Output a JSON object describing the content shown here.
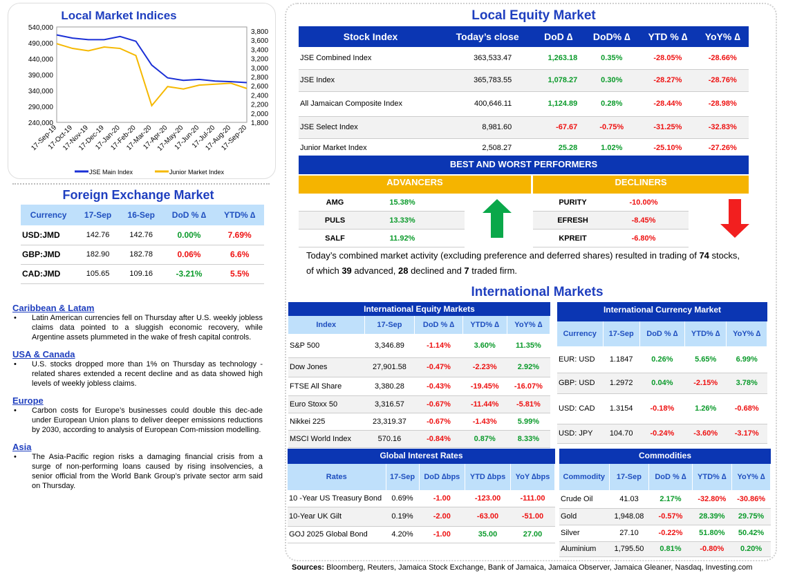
{
  "chart": {
    "title": "Local Market Indices",
    "left_ticks": [
      "540,000",
      "490,000",
      "440,000",
      "390,000",
      "340,000",
      "290,000",
      "240,000"
    ],
    "right_ticks": [
      "3,800",
      "3,600",
      "3,400",
      "3,200",
      "3,000",
      "2,800",
      "2,600",
      "2,400",
      "2,200",
      "2,000",
      "1,800"
    ],
    "x_ticks": [
      "17-Sep-19",
      "17-Oct-19",
      "17-Nov-19",
      "17-Dec-19",
      "17-Jan-20",
      "17-Feb-20",
      "17-Mar-20",
      "17-Apr-20",
      "17-May-20",
      "17-Jun-20",
      "17-Jul-20",
      "17-Aug-20",
      "17-Sep-20"
    ],
    "legend_main": "JSE Main Index",
    "legend_junior": "Junior Market Index",
    "color_main": "#1a2fd6",
    "color_junior": "#f5b800"
  },
  "chart_data": {
    "type": "line",
    "title": "Local Market Indices",
    "x": [
      "17-Sep-19",
      "17-Oct-19",
      "17-Nov-19",
      "17-Dec-19",
      "17-Jan-20",
      "17-Feb-20",
      "17-Mar-20",
      "17-Apr-20",
      "17-May-20",
      "17-Jun-20",
      "17-Jul-20",
      "17-Aug-20",
      "17-Sep-20"
    ],
    "series": [
      {
        "name": "JSE Main Index",
        "axis": "left",
        "values": [
          515000,
          505000,
          500000,
          500000,
          510000,
          495000,
          420000,
          380000,
          372000,
          375000,
          370000,
          368000,
          365000
        ]
      },
      {
        "name": "Junior Market Index",
        "axis": "right",
        "values": [
          3450,
          3350,
          3300,
          3380,
          3350,
          3200,
          2150,
          2550,
          2500,
          2580,
          2600,
          2620,
          2510
        ]
      }
    ],
    "ylim_left": [
      240000,
      540000
    ],
    "ylim_right": [
      1800,
      3800
    ]
  },
  "fx": {
    "title": "Foreign Exchange Market",
    "headers": [
      "Currency",
      "17-Sep",
      "16-Sep",
      "DoD % ∆",
      "YTD% ∆"
    ],
    "rows": [
      {
        "c": "USD:JMD",
        "a": "142.76",
        "b": "142.76",
        "d": "0.00%",
        "y": "7.69%",
        "ds": "pos",
        "ys": "neg"
      },
      {
        "c": "GBP:JMD",
        "a": "182.90",
        "b": "182.78",
        "d": "0.06%",
        "y": "6.6%",
        "ds": "neg",
        "ys": "neg"
      },
      {
        "c": "CAD:JMD",
        "a": "105.65",
        "b": "109.16",
        "d": "-3.21%",
        "y": "5.5%",
        "ds": "pos",
        "ys": "neg"
      }
    ]
  },
  "news": [
    {
      "head": "Caribbean & Latam",
      "text": "Latin American currencies fell on Thursday after U.S. weekly jobless claims data pointed to a sluggish economic recovery, while Argentine assets plummeted in the wake of fresh capital controls."
    },
    {
      "head": "USA & Canada",
      "text": "U.S. stocks dropped more than 1% on Thursday as technology -related shares extended a recent decline and as data showed high levels of weekly jobless claims."
    },
    {
      "head": "Europe",
      "text": "Carbon costs for Europe’s businesses could double this dec-ade under European Union plans to deliver deeper emissions reductions by 2030, according to analysis of European Com-mission modelling."
    },
    {
      "head": "Asia",
      "text": "The Asia-Pacific region risks a damaging financial crisis from a surge of non-performing loans caused by rising insolvencies, a senior official from the World Bank Group’s private sector arm said on Thursday."
    }
  ],
  "equity": {
    "title": "Local Equity Market",
    "headers": [
      "Stock Index",
      "Today’s close",
      "DoD  ∆",
      "DoD% ∆",
      "YTD % ∆",
      "YoY% ∆"
    ],
    "rows": [
      {
        "n": "JSE Combined Index",
        "c": "363,533.47",
        "d": "1,263.18",
        "dp": "0.35%",
        "y": "-28.05%",
        "yy": "-28.66%",
        "s": "pos"
      },
      {
        "n": "JSE Index",
        "c": "365,783.55",
        "d": "1,078.27",
        "dp": "0.30%",
        "y": "-28.27%",
        "yy": "-28.76%",
        "s": "pos"
      },
      {
        "n": "All Jamaican Composite Index",
        "c": "400,646.11",
        "d": "1,124.89",
        "dp": "0.28%",
        "y": "-28.44%",
        "yy": "-28.98%",
        "s": "pos"
      },
      {
        "n": "JSE Select Index",
        "c": "8,981.60",
        "d": "-67.67",
        "dp": "-0.75%",
        "y": "-31.25%",
        "yy": "-32.83%",
        "s": "neg"
      },
      {
        "n": "Junior Market Index",
        "c": "2,508.27",
        "d": "25.28",
        "dp": "1.02%",
        "y": "-25.10%",
        "yy": "-27.26%",
        "s": "pos"
      }
    ]
  },
  "performers": {
    "title": "BEST AND WORST PERFORMERS",
    "adv_label": "ADVANCERS",
    "dec_label": "DECLINERS",
    "advancers": [
      {
        "s": "AMG",
        "v": "15.38%"
      },
      {
        "s": "PULS",
        "v": "13.33%"
      },
      {
        "s": "SALF",
        "v": "11.92%"
      }
    ],
    "decliners": [
      {
        "s": "PURITY",
        "v": "-10.00%"
      },
      {
        "s": "EFRESH",
        "v": "-8.45%"
      },
      {
        "s": "KPREIT",
        "v": "-6.80%"
      }
    ]
  },
  "summary": {
    "p1": "Today’s combined market activity (excluding preference and deferred shares) resulted in trading of ",
    "n1": "74",
    "p2": " stocks, of which ",
    "n2": "39",
    "p3": " advanced, ",
    "n3": "28",
    "p4": " declined and ",
    "n4": "7",
    "p5": " traded firm."
  },
  "intl": {
    "title": "International Markets",
    "eq_title": "International Equity Markets",
    "eq_headers": [
      "Index",
      "17-Sep",
      "DoD % ∆",
      "YTD% ∆",
      "YoY% ∆"
    ],
    "eq_rows": [
      {
        "n": "S&P 500",
        "v": "3,346.89",
        "d": "-1.14%",
        "y": "3.60%",
        "yy": "11.35%",
        "ds": "neg",
        "ys": "pos",
        "yys": "pos"
      },
      {
        "n": "Dow Jones",
        "v": "27,901.58",
        "d": "-0.47%",
        "y": "-2.23%",
        "yy": "2.92%",
        "ds": "neg",
        "ys": "neg",
        "yys": "pos"
      },
      {
        "n": "FTSE All Share",
        "v": "3,380.28",
        "d": "-0.43%",
        "y": "-19.45%",
        "yy": "-16.07%",
        "ds": "neg",
        "ys": "neg",
        "yys": "neg"
      },
      {
        "n": "Euro Stoxx 50",
        "v": "3,316.57",
        "d": "-0.67%",
        "y": "-11.44%",
        "yy": "-5.81%",
        "ds": "neg",
        "ys": "neg",
        "yys": "neg"
      },
      {
        "n": "Nikkei 225",
        "v": "23,319.37",
        "d": "-0.67%",
        "y": "-1.43%",
        "yy": "5.99%",
        "ds": "neg",
        "ys": "neg",
        "yys": "pos"
      },
      {
        "n": "MSCI World Index",
        "v": "570.16",
        "d": "-0.84%",
        "y": "0.87%",
        "yy": "8.33%",
        "ds": "neg",
        "ys": "pos",
        "yys": "pos"
      }
    ],
    "cur_title": "International Currency Market",
    "cur_headers": [
      "Currency",
      "17-Sep",
      "DoD % ∆",
      "YTD% ∆",
      "YoY% ∆"
    ],
    "cur_rows": [
      {
        "n": "EUR: USD",
        "v": "1.1847",
        "d": "0.26%",
        "y": "5.65%",
        "yy": "6.99%",
        "ds": "pos",
        "ys": "pos",
        "yys": "pos"
      },
      {
        "n": "GBP: USD",
        "v": "1.2972",
        "d": "0.04%",
        "y": "-2.15%",
        "yy": "3.78%",
        "ds": "pos",
        "ys": "neg",
        "yys": "pos"
      },
      {
        "n": "USD: CAD",
        "v": "1.3154",
        "d": "-0.18%",
        "y": "1.26%",
        "yy": "-0.68%",
        "ds": "neg",
        "ys": "pos",
        "yys": "neg"
      },
      {
        "n": "USD: JPY",
        "v": "104.70",
        "d": "-0.24%",
        "y": "-3.60%",
        "yy": "-3.17%",
        "ds": "neg",
        "ys": "neg",
        "yys": "neg"
      }
    ],
    "rates_title": "Global Interest Rates",
    "rates_headers": [
      "Rates",
      "17-Sep",
      "DoD ∆bps",
      "YTD ∆bps",
      "YoY ∆bps"
    ],
    "rates_rows": [
      {
        "n": "10 -Year US Treasury Bond",
        "v": "0.69%",
        "d": "-1.00",
        "y": "-123.00",
        "yy": "-111.00",
        "ds": "neg",
        "ys": "neg",
        "yys": "neg"
      },
      {
        "n": "10-Year UK Gilt",
        "v": "0.19%",
        "d": "-2.00",
        "y": "-63.00",
        "yy": "-51.00",
        "ds": "neg",
        "ys": "neg",
        "yys": "neg"
      },
      {
        "n": "GOJ 2025 Global Bond",
        "v": "4.20%",
        "d": "-1.00",
        "y": "35.00",
        "yy": "27.00",
        "ds": "neg",
        "ys": "pos",
        "yys": "pos"
      }
    ],
    "com_title": "Commodities",
    "com_headers": [
      "Commodity",
      "17-Sep",
      "DoD % ∆",
      "YTD% ∆",
      "YoY% ∆"
    ],
    "com_rows": [
      {
        "n": "Crude Oil",
        "v": "41.03",
        "d": "2.17%",
        "y": "-32.80%",
        "yy": "-30.86%",
        "ds": "pos",
        "ys": "neg",
        "yys": "neg"
      },
      {
        "n": "Gold",
        "v": "1,948.08",
        "d": "-0.57%",
        "y": "28.39%",
        "yy": "29.75%",
        "ds": "neg",
        "ys": "pos",
        "yys": "pos"
      },
      {
        "n": "Silver",
        "v": "27.10",
        "d": "-0.22%",
        "y": "51.80%",
        "yy": "50.42%",
        "ds": "neg",
        "ys": "pos",
        "yys": "pos"
      },
      {
        "n": "Aluminium",
        "v": "1,795.50",
        "d": "0.81%",
        "y": "-0.80%",
        "yy": "0.20%",
        "ds": "pos",
        "ys": "neg",
        "yys": "pos"
      }
    ]
  },
  "sources": {
    "label": "Sources:",
    "text": " Bloomberg, Reuters, Jamaica Stock Exchange, Bank of Jamaica, Jamaica Observer, Jamaica Gleaner, Nasdaq, Investing.com"
  }
}
